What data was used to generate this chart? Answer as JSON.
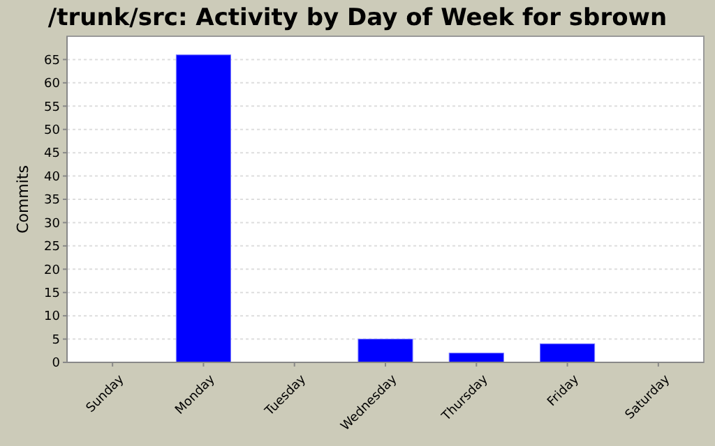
{
  "chart_data": {
    "type": "bar",
    "title": "/trunk/src: Activity by Day of Week for sbrown",
    "ylabel": "Commits",
    "categories": [
      "Sunday",
      "Monday",
      "Tuesday",
      "Wednesday",
      "Thursday",
      "Friday",
      "Saturday"
    ],
    "values": [
      0,
      66,
      0,
      5,
      2,
      4,
      0
    ],
    "color": "#0000ff",
    "ylim": [
      0,
      70
    ],
    "yticks": [
      0,
      5,
      10,
      15,
      20,
      25,
      30,
      35,
      40,
      45,
      50,
      55,
      60,
      65
    ],
    "grid": "y"
  }
}
